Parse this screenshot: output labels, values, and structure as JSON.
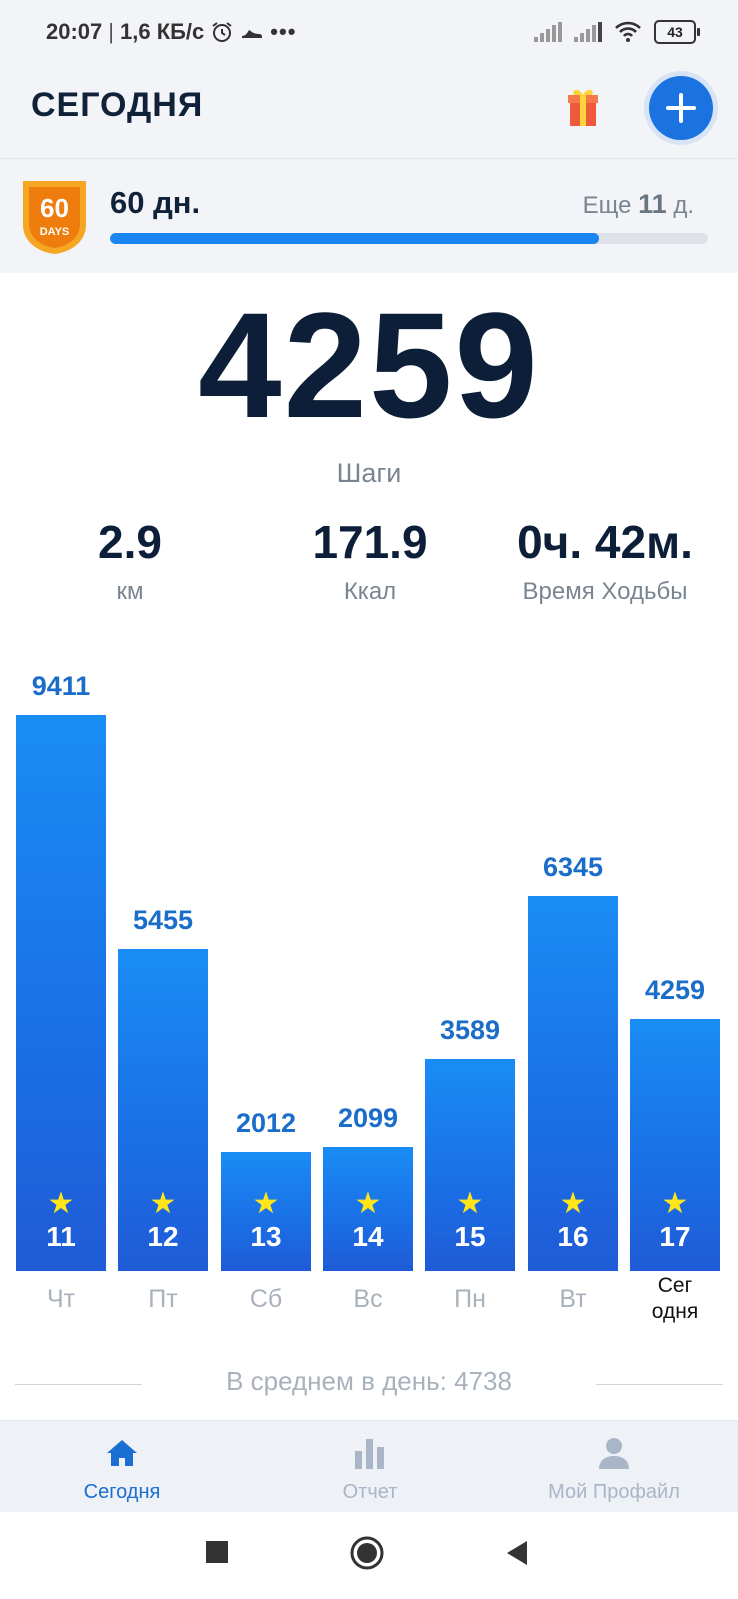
{
  "status_bar": {
    "time": "20:07",
    "speed": "1,6 КБ/с",
    "battery": "43"
  },
  "header": {
    "title": "СЕГОДНЯ"
  },
  "challenge": {
    "badge_number": "60",
    "badge_text": "DAYS",
    "days_label": "60 дн.",
    "remaining_prefix": "Еще",
    "remaining_value": "11",
    "remaining_suffix": "д.",
    "progress_fraction": 0.817
  },
  "summary": {
    "steps": "4259",
    "steps_label": "Шаги",
    "distance_value": "2.9",
    "distance_label": "км",
    "calories_value": "171.9",
    "calories_label": "Ккал",
    "time_value": "0ч. 42м.",
    "time_label": "Время Ходьбы"
  },
  "chart_data": {
    "type": "bar",
    "categories": [
      "Чт",
      "Пт",
      "Сб",
      "Вс",
      "Пн",
      "Вт",
      "Сег\nодня"
    ],
    "dates": [
      "11",
      "12",
      "13",
      "14",
      "15",
      "16",
      "17"
    ],
    "values": [
      9411,
      5455,
      2012,
      2099,
      3589,
      6345,
      4259
    ],
    "value_labels": [
      "9411",
      "5455",
      "2012",
      "2099",
      "3589",
      "6345",
      "4259"
    ],
    "ylim": [
      0,
      9411
    ],
    "grid": false,
    "legend": "none"
  },
  "average": {
    "text": "В среднем в день: 4738"
  },
  "bottom_nav": {
    "today": "Сегодня",
    "report": "Отчет",
    "profile": "Мой Профайл"
  },
  "colors": {
    "accent": "#1a73e0",
    "bar": "#1a7ff0",
    "star": "#ffe51a",
    "badge": "#f08a12"
  }
}
